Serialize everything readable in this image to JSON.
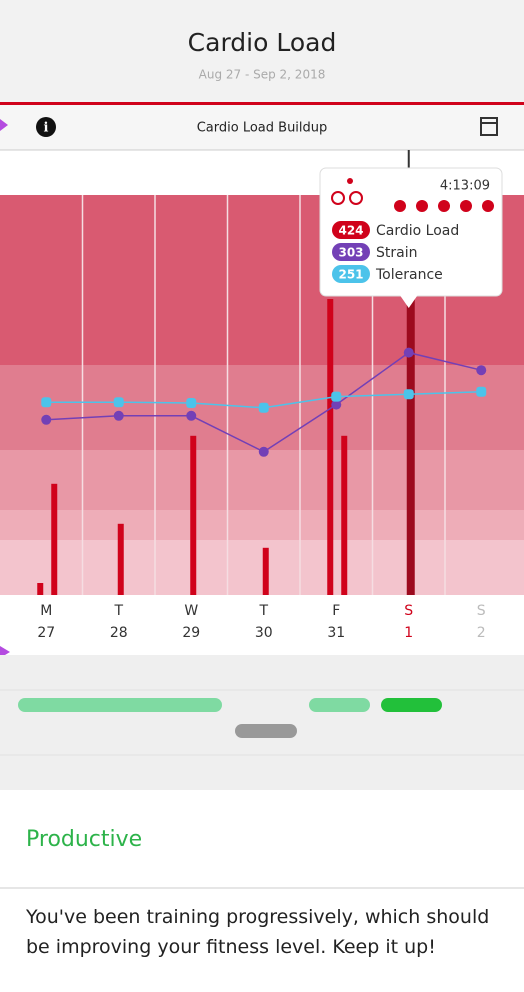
{
  "header": {
    "title": "Cardio Load",
    "subtitle": "Aug 27 - Sep 2, 2018"
  },
  "toolbar": {
    "title": "Cardio Load Buildup"
  },
  "chart": {
    "ylim": [
      0,
      500
    ],
    "days": [
      {
        "weekday": "M",
        "date": "27",
        "loads": [
          15,
          139
        ],
        "strain": 219,
        "tolerance": 241
      },
      {
        "weekday": "T",
        "date": "28",
        "loads": [
          89
        ],
        "strain": 224,
        "tolerance": 241
      },
      {
        "weekday": "W",
        "date": "29",
        "loads": [
          199
        ],
        "strain": 224,
        "tolerance": 240
      },
      {
        "weekday": "T",
        "date": "30",
        "loads": [
          59
        ],
        "strain": 179,
        "tolerance": 234
      },
      {
        "weekday": "F",
        "date": "31",
        "loads": [
          370,
          199
        ],
        "strain": 238,
        "tolerance": 248
      },
      {
        "weekday": "S",
        "date": "1",
        "loads": [
          424
        ],
        "strain": 303,
        "tolerance": 251
      },
      {
        "weekday": "S",
        "date": "2",
        "loads": [],
        "strain": 281,
        "tolerance": 254
      }
    ]
  },
  "tooltip": {
    "time": "4:13:09",
    "labels": [
      "Cardio Load",
      "Strain",
      "Tolerance"
    ]
  },
  "status": {
    "title": "Productive",
    "text": "You've been training progressively, which should be improving your fitness level. Keep it up!"
  }
}
